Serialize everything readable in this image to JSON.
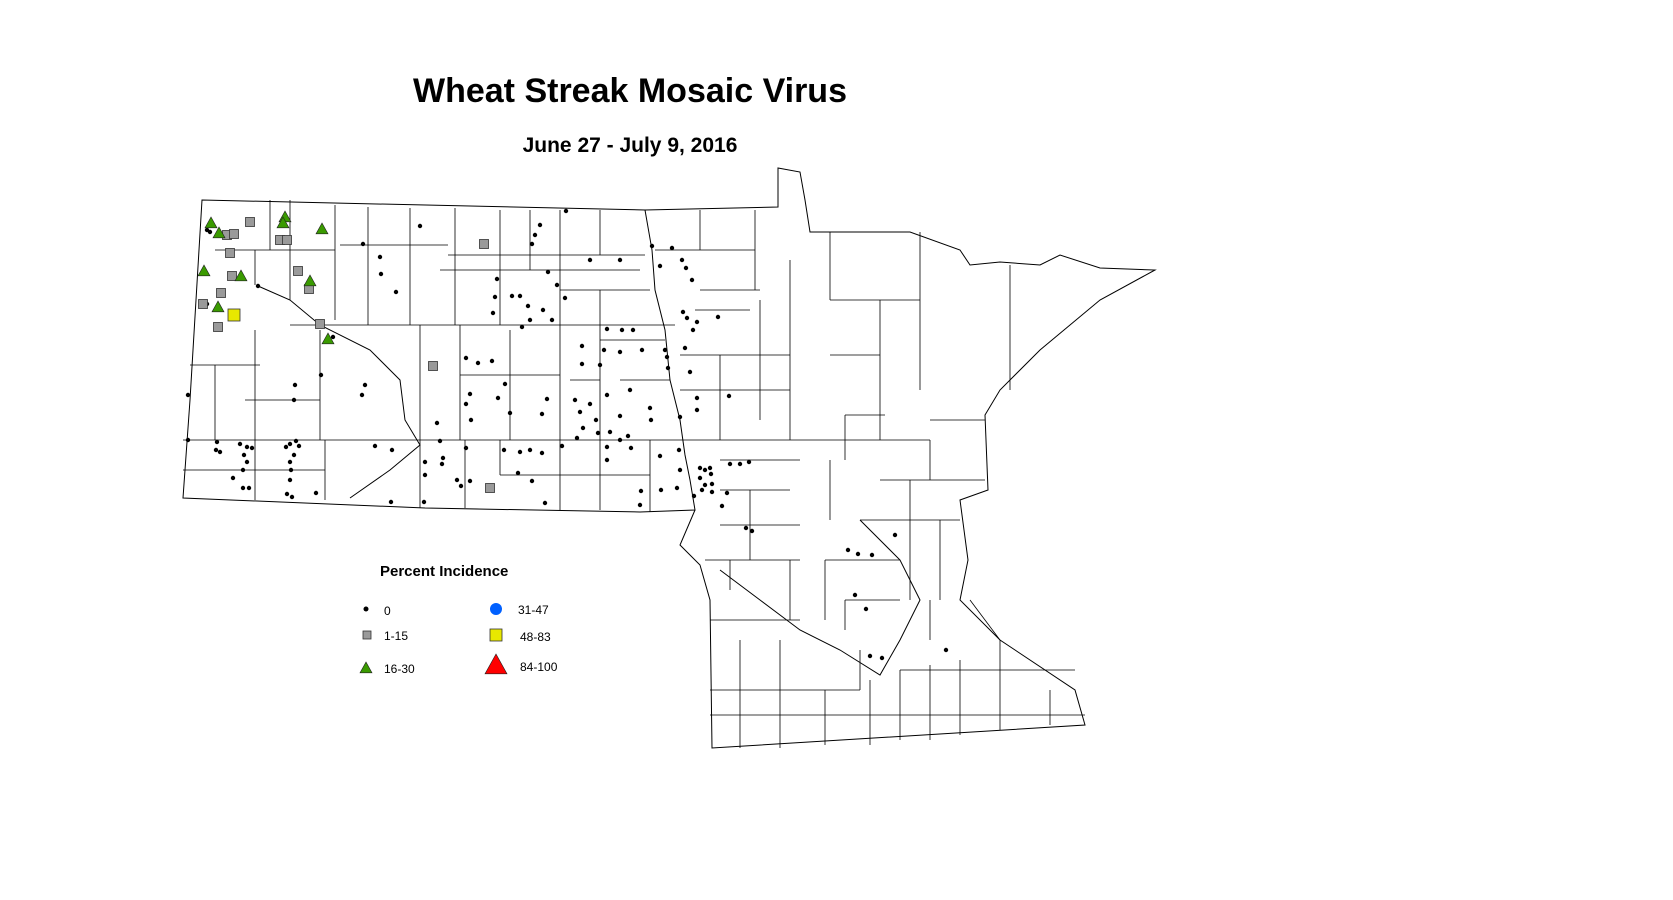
{
  "title": "Wheat Streak Mosaic Virus",
  "subtitle": "June 27 - July 9, 2016",
  "legend": {
    "title": "Percent Incidence",
    "classes": [
      {
        "label": "0",
        "symbol": "dot",
        "color": "#000000"
      },
      {
        "label": "1-15",
        "symbol": "square",
        "color": "#9a9a9a"
      },
      {
        "label": "16-30",
        "symbol": "triangle",
        "color": "#3a9a00"
      },
      {
        "label": "31-47",
        "symbol": "circle",
        "color": "#0060ff"
      },
      {
        "label": "48-83",
        "symbol": "square",
        "color": "#e8e800"
      },
      {
        "label": "84-100",
        "symbol": "triangle",
        "color": "#ff0000"
      }
    ]
  }
}
